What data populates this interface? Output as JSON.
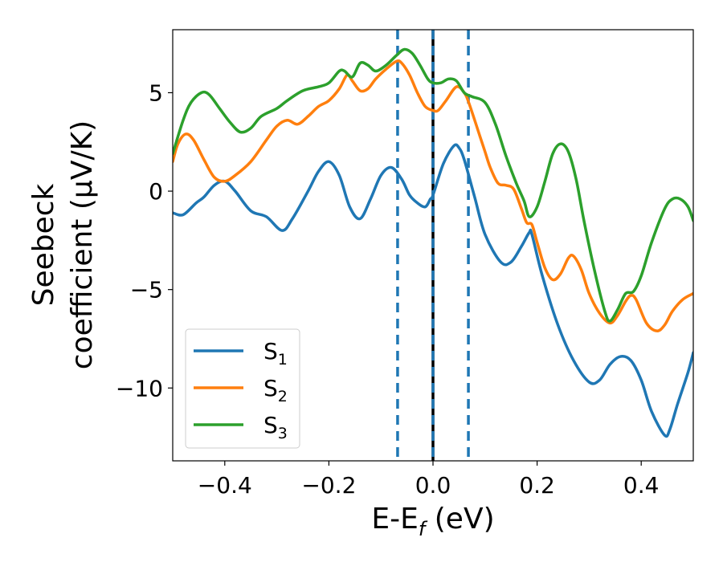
{
  "chart_data": {
    "type": "line",
    "title": "",
    "xlabel": {
      "main": "E-E",
      "sub": "f",
      "unit": " (eV)"
    },
    "ylabel": {
      "line1": "Seebeck",
      "line2": "coefficient  (μV/K)"
    },
    "xlim": [
      -0.5,
      0.5
    ],
    "ylim": [
      -13.7,
      8.2
    ],
    "xticks": [
      -0.4,
      -0.2,
      0.0,
      0.2,
      0.4
    ],
    "xtick_labels": [
      "−0.4",
      "−0.2",
      "0.0",
      "0.2",
      "0.4"
    ],
    "yticks": [
      -10,
      -5,
      0,
      5
    ],
    "ytick_labels": [
      "−10",
      "−5",
      "0",
      "5"
    ],
    "grid": false,
    "legend_position": "lower-left",
    "vlines": [
      {
        "x": -0.068,
        "style": "dashed",
        "color": "#1f77b4"
      },
      {
        "x": 0.0,
        "style": "dashed-on-solid",
        "color": "#000000"
      },
      {
        "x": 0.068,
        "style": "dashed",
        "color": "#1f77b4"
      }
    ],
    "series": [
      {
        "name": "S",
        "sub": "1",
        "color": "#1f77b4",
        "points": [
          [
            -0.5,
            -1.1
          ],
          [
            -0.48,
            -1.2
          ],
          [
            -0.455,
            -0.6
          ],
          [
            -0.44,
            -0.3
          ],
          [
            -0.42,
            0.3
          ],
          [
            -0.4,
            0.5
          ],
          [
            -0.38,
            0.0
          ],
          [
            -0.35,
            -1.0
          ],
          [
            -0.32,
            -1.3
          ],
          [
            -0.29,
            -2.0
          ],
          [
            -0.27,
            -1.4
          ],
          [
            -0.24,
            -0.0
          ],
          [
            -0.22,
            1.0
          ],
          [
            -0.2,
            1.5
          ],
          [
            -0.18,
            0.8
          ],
          [
            -0.16,
            -0.8
          ],
          [
            -0.14,
            -1.4
          ],
          [
            -0.12,
            -0.4
          ],
          [
            -0.1,
            0.8
          ],
          [
            -0.08,
            1.2
          ],
          [
            -0.06,
            0.6
          ],
          [
            -0.045,
            -0.2
          ],
          [
            -0.03,
            -0.6
          ],
          [
            -0.015,
            -0.8
          ],
          [
            -0.005,
            -0.4
          ],
          [
            0.0,
            -0.2
          ],
          [
            0.02,
            1.4
          ],
          [
            0.04,
            2.3
          ],
          [
            0.05,
            2.2
          ],
          [
            0.06,
            1.6
          ],
          [
            0.08,
            -0.3
          ],
          [
            0.1,
            -2.2
          ],
          [
            0.13,
            -3.6
          ],
          [
            0.15,
            -3.6
          ],
          [
            0.17,
            -2.8
          ],
          [
            0.185,
            -2.1
          ],
          [
            0.19,
            -2.2
          ],
          [
            0.21,
            -4.3
          ],
          [
            0.24,
            -6.8
          ],
          [
            0.27,
            -8.6
          ],
          [
            0.3,
            -9.7
          ],
          [
            0.32,
            -9.6
          ],
          [
            0.34,
            -8.8
          ],
          [
            0.36,
            -8.4
          ],
          [
            0.38,
            -8.6
          ],
          [
            0.4,
            -9.6
          ],
          [
            0.42,
            -11.2
          ],
          [
            0.445,
            -12.4
          ],
          [
            0.455,
            -12.1
          ],
          [
            0.47,
            -10.8
          ],
          [
            0.49,
            -9.2
          ],
          [
            0.5,
            -8.2
          ]
        ]
      },
      {
        "name": "S",
        "sub": "2",
        "color": "#ff7f0e",
        "points": [
          [
            -0.5,
            1.5
          ],
          [
            -0.49,
            2.4
          ],
          [
            -0.475,
            2.9
          ],
          [
            -0.46,
            2.6
          ],
          [
            -0.44,
            1.6
          ],
          [
            -0.42,
            0.7
          ],
          [
            -0.4,
            0.5
          ],
          [
            -0.38,
            0.8
          ],
          [
            -0.35,
            1.5
          ],
          [
            -0.32,
            2.6
          ],
          [
            -0.3,
            3.3
          ],
          [
            -0.28,
            3.6
          ],
          [
            -0.26,
            3.4
          ],
          [
            -0.24,
            3.8
          ],
          [
            -0.22,
            4.3
          ],
          [
            -0.2,
            4.6
          ],
          [
            -0.18,
            5.2
          ],
          [
            -0.165,
            5.9
          ],
          [
            -0.155,
            5.6
          ],
          [
            -0.14,
            5.1
          ],
          [
            -0.125,
            5.2
          ],
          [
            -0.11,
            5.7
          ],
          [
            -0.09,
            6.2
          ],
          [
            -0.07,
            6.6
          ],
          [
            -0.06,
            6.5
          ],
          [
            -0.045,
            5.9
          ],
          [
            -0.03,
            5.0
          ],
          [
            -0.015,
            4.3
          ],
          [
            0.0,
            4.1
          ],
          [
            0.01,
            4.1
          ],
          [
            0.025,
            4.6
          ],
          [
            0.045,
            5.3
          ],
          [
            0.06,
            5.0
          ],
          [
            0.07,
            4.4
          ],
          [
            0.09,
            2.8
          ],
          [
            0.1,
            2.0
          ],
          [
            0.11,
            1.2
          ],
          [
            0.125,
            0.4
          ],
          [
            0.14,
            0.3
          ],
          [
            0.155,
            0.1
          ],
          [
            0.17,
            -0.9
          ],
          [
            0.18,
            -1.6
          ],
          [
            0.19,
            -1.7
          ],
          [
            0.2,
            -2.6
          ],
          [
            0.215,
            -3.9
          ],
          [
            0.23,
            -4.5
          ],
          [
            0.245,
            -4.2
          ],
          [
            0.26,
            -3.4
          ],
          [
            0.27,
            -3.3
          ],
          [
            0.285,
            -4.0
          ],
          [
            0.3,
            -5.2
          ],
          [
            0.32,
            -6.2
          ],
          [
            0.34,
            -6.7
          ],
          [
            0.355,
            -6.3
          ],
          [
            0.37,
            -5.6
          ],
          [
            0.38,
            -5.3
          ],
          [
            0.39,
            -5.5
          ],
          [
            0.41,
            -6.7
          ],
          [
            0.43,
            -7.1
          ],
          [
            0.445,
            -6.8
          ],
          [
            0.46,
            -6.1
          ],
          [
            0.48,
            -5.5
          ],
          [
            0.5,
            -5.2
          ]
        ]
      },
      {
        "name": "S",
        "sub": "3",
        "color": "#2ca02c",
        "points": [
          [
            -0.5,
            1.9
          ],
          [
            -0.48,
            3.6
          ],
          [
            -0.465,
            4.5
          ],
          [
            -0.445,
            5.0
          ],
          [
            -0.43,
            4.9
          ],
          [
            -0.41,
            4.2
          ],
          [
            -0.39,
            3.5
          ],
          [
            -0.37,
            3.0
          ],
          [
            -0.35,
            3.2
          ],
          [
            -0.33,
            3.8
          ],
          [
            -0.3,
            4.2
          ],
          [
            -0.28,
            4.6
          ],
          [
            -0.25,
            5.1
          ],
          [
            -0.22,
            5.3
          ],
          [
            -0.2,
            5.5
          ],
          [
            -0.18,
            6.1
          ],
          [
            -0.17,
            6.1
          ],
          [
            -0.155,
            5.8
          ],
          [
            -0.14,
            6.5
          ],
          [
            -0.125,
            6.4
          ],
          [
            -0.11,
            6.1
          ],
          [
            -0.09,
            6.4
          ],
          [
            -0.07,
            6.9
          ],
          [
            -0.055,
            7.2
          ],
          [
            -0.04,
            7.0
          ],
          [
            -0.025,
            6.4
          ],
          [
            -0.01,
            5.7
          ],
          [
            0.0,
            5.5
          ],
          [
            0.015,
            5.5
          ],
          [
            0.03,
            5.7
          ],
          [
            0.045,
            5.6
          ],
          [
            0.06,
            5.0
          ],
          [
            0.075,
            4.8
          ],
          [
            0.1,
            4.5
          ],
          [
            0.12,
            3.4
          ],
          [
            0.14,
            1.8
          ],
          [
            0.16,
            0.4
          ],
          [
            0.175,
            -0.5
          ],
          [
            0.185,
            -1.3
          ],
          [
            0.2,
            -0.8
          ],
          [
            0.215,
            0.5
          ],
          [
            0.23,
            1.9
          ],
          [
            0.245,
            2.4
          ],
          [
            0.26,
            2.0
          ],
          [
            0.275,
            0.6
          ],
          [
            0.29,
            -1.5
          ],
          [
            0.31,
            -4.0
          ],
          [
            0.33,
            -6.1
          ],
          [
            0.34,
            -6.6
          ],
          [
            0.355,
            -6.0
          ],
          [
            0.37,
            -5.2
          ],
          [
            0.385,
            -5.1
          ],
          [
            0.4,
            -4.3
          ],
          [
            0.42,
            -2.6
          ],
          [
            0.445,
            -0.9
          ],
          [
            0.46,
            -0.4
          ],
          [
            0.475,
            -0.4
          ],
          [
            0.49,
            -0.8
          ],
          [
            0.5,
            -1.5
          ]
        ]
      }
    ]
  }
}
